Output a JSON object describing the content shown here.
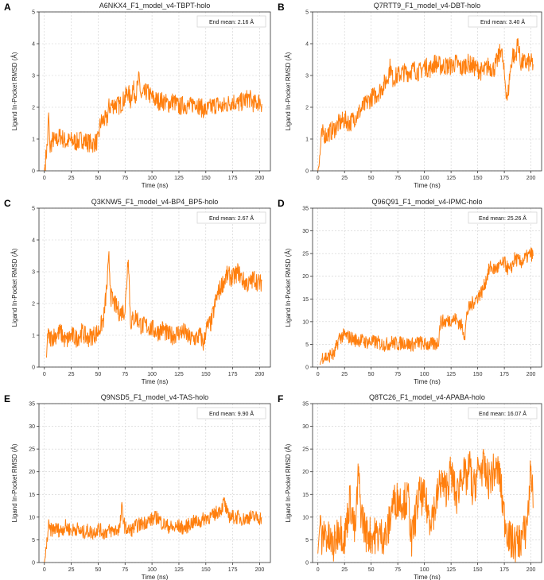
{
  "chart_data": [
    {
      "type": "line",
      "letter": "A",
      "title": "A6NKX4_F1_model_v4-TBPT-holo",
      "xlabel": "Time (ns)",
      "ylabel": "Ligand In-Pocket RMSD (Å)",
      "xlim": [
        -5,
        210
      ],
      "ylim": [
        0,
        5
      ],
      "xticks": [
        0,
        25,
        50,
        75,
        100,
        125,
        150,
        175,
        200
      ],
      "yticks": [
        0,
        1,
        2,
        3,
        4,
        5
      ],
      "annotation": "End mean: 2.16 Å",
      "grid": true,
      "color": "#ff7f0e",
      "series": [
        {
          "x": [
            0,
            1,
            2,
            3,
            4,
            5,
            8,
            10,
            15,
            20,
            25,
            30,
            35,
            40,
            45,
            50,
            52,
            55,
            58,
            60,
            65,
            70,
            75,
            78,
            80,
            82,
            85,
            88,
            90,
            95,
            100,
            105,
            110,
            115,
            120,
            125,
            130,
            135,
            140,
            145,
            150,
            155,
            160,
            165,
            170,
            175,
            180,
            185,
            190,
            195,
            200,
            202
          ],
          "y": [
            0.0,
            0.3,
            0.6,
            0.9,
            1.8,
            0.7,
            1.0,
            0.9,
            1.1,
            0.9,
            0.95,
            0.9,
            1.0,
            0.9,
            0.85,
            0.95,
            1.5,
            1.6,
            1.6,
            2.0,
            2.1,
            2.05,
            2.3,
            2.5,
            2.2,
            2.6,
            2.4,
            2.9,
            2.3,
            2.5,
            2.3,
            2.2,
            2.2,
            2.1,
            2.2,
            2.0,
            2.1,
            2.0,
            2.2,
            2.0,
            1.9,
            2.0,
            2.1,
            2.0,
            2.1,
            2.2,
            2.1,
            2.2,
            2.3,
            2.1,
            2.2,
            2.1
          ]
        }
      ]
    },
    {
      "type": "line",
      "letter": "B",
      "title": "Q7RTT9_F1_model_v4-DBT-holo",
      "xlabel": "Time (ns)",
      "ylabel": "Ligand In-Pocket RMSD (Å)",
      "xlim": [
        -5,
        210
      ],
      "ylim": [
        0,
        5
      ],
      "xticks": [
        0,
        25,
        50,
        75,
        100,
        125,
        150,
        175,
        200
      ],
      "yticks": [
        0,
        1,
        2,
        3,
        4,
        5
      ],
      "annotation": "End mean: 3.40 Å",
      "grid": true,
      "color": "#ff7f0e",
      "series": [
        {
          "x": [
            0,
            1,
            2,
            3,
            5,
            8,
            10,
            15,
            20,
            25,
            30,
            35,
            40,
            45,
            50,
            55,
            60,
            65,
            68,
            70,
            75,
            80,
            85,
            90,
            95,
            100,
            105,
            110,
            115,
            120,
            125,
            130,
            135,
            140,
            145,
            150,
            155,
            160,
            165,
            170,
            172,
            175,
            178,
            180,
            183,
            185,
            188,
            190,
            195,
            200,
            202
          ],
          "y": [
            0.0,
            0.2,
            0.5,
            1.0,
            1.2,
            1.1,
            1.2,
            1.3,
            1.5,
            1.6,
            1.5,
            1.7,
            1.9,
            2.1,
            2.3,
            2.4,
            2.6,
            2.9,
            3.3,
            2.9,
            3.0,
            3.1,
            3.1,
            3.2,
            3.1,
            3.3,
            3.2,
            3.4,
            3.3,
            3.3,
            3.3,
            3.4,
            3.2,
            3.4,
            3.3,
            3.2,
            3.1,
            3.3,
            3.2,
            3.6,
            3.9,
            3.0,
            2.2,
            3.0,
            3.7,
            3.5,
            4.1,
            3.4,
            3.4,
            3.4,
            3.35
          ]
        }
      ]
    },
    {
      "type": "line",
      "letter": "C",
      "title": "Q3KNW5_F1_model_v4-BP4_BP5-holo",
      "xlabel": "Time (ns)",
      "ylabel": "Ligand In-Pocket RMSD (Å)",
      "xlim": [
        -5,
        210
      ],
      "ylim": [
        0,
        5
      ],
      "xticks": [
        0,
        25,
        50,
        75,
        100,
        125,
        150,
        175,
        200
      ],
      "yticks": [
        0,
        1,
        2,
        3,
        4,
        5
      ],
      "annotation": "End mean: 2.67 Å",
      "grid": true,
      "color": "#ff7f0e",
      "series": [
        {
          "x": [
            2,
            3,
            5,
            10,
            15,
            20,
            25,
            30,
            35,
            40,
            45,
            50,
            55,
            58,
            60,
            62,
            65,
            70,
            75,
            78,
            80,
            85,
            90,
            95,
            100,
            105,
            110,
            115,
            120,
            125,
            130,
            135,
            140,
            145,
            148,
            150,
            155,
            160,
            165,
            170,
            175,
            180,
            185,
            190,
            195,
            200,
            202
          ],
          "y": [
            0.3,
            1.0,
            0.9,
            1.0,
            1.1,
            0.8,
            1.0,
            0.9,
            1.1,
            0.9,
            1.0,
            1.1,
            1.5,
            2.5,
            3.4,
            2.2,
            2.0,
            1.7,
            1.8,
            3.6,
            1.4,
            1.6,
            1.3,
            1.3,
            1.2,
            1.1,
            1.2,
            1.0,
            1.0,
            1.1,
            1.1,
            0.9,
            0.9,
            1.0,
            0.7,
            1.2,
            1.4,
            2.2,
            2.6,
            2.9,
            2.8,
            3.0,
            2.7,
            2.6,
            2.8,
            2.6,
            2.7
          ]
        }
      ]
    },
    {
      "type": "line",
      "letter": "D",
      "title": "Q96Q91_F1_model_v4-IPMC-holo",
      "xlabel": "Time (ns)",
      "ylabel": "Ligand In-Pocket RMSD (Å)",
      "xlim": [
        -5,
        210
      ],
      "ylim": [
        0,
        35
      ],
      "xticks": [
        0,
        25,
        50,
        75,
        100,
        125,
        150,
        175,
        200
      ],
      "yticks": [
        0,
        5,
        10,
        15,
        20,
        25,
        30,
        35
      ],
      "annotation": "End mean: 25.26 Å",
      "grid": true,
      "color": "#ff7f0e",
      "series": [
        {
          "x": [
            2,
            3,
            5,
            10,
            12,
            15,
            20,
            25,
            30,
            35,
            40,
            45,
            50,
            55,
            60,
            65,
            70,
            75,
            80,
            85,
            90,
            95,
            100,
            105,
            110,
            113,
            115,
            120,
            125,
            130,
            135,
            138,
            140,
            142,
            145,
            150,
            155,
            160,
            162,
            165,
            170,
            175,
            180,
            185,
            190,
            195,
            200,
            202
          ],
          "y": [
            0.5,
            1.5,
            2.5,
            2.0,
            3.0,
            2.5,
            6.5,
            7.0,
            6.5,
            6.0,
            6.0,
            5.5,
            5.5,
            5.5,
            5.0,
            5.0,
            5.5,
            5.0,
            5.5,
            5.0,
            5.0,
            5.5,
            5.0,
            5.0,
            5.0,
            5.5,
            10.0,
            10.0,
            10.5,
            10.5,
            9.0,
            7.0,
            12.0,
            13.0,
            14.0,
            15.5,
            17.0,
            21.0,
            22.0,
            21.5,
            22.0,
            23.0,
            21.0,
            24.0,
            23.0,
            24.0,
            25.0,
            24.5
          ]
        }
      ]
    },
    {
      "type": "line",
      "letter": "E",
      "title": "Q9NSD5_F1_model_v4-TAS-holo",
      "xlabel": "Time (ns)",
      "ylabel": "Ligand In-Pocket RMSD (Å)",
      "xlim": [
        -5,
        210
      ],
      "ylim": [
        0,
        35
      ],
      "xticks": [
        0,
        25,
        50,
        75,
        100,
        125,
        150,
        175,
        200
      ],
      "yticks": [
        0,
        5,
        10,
        15,
        20,
        25,
        30,
        35
      ],
      "annotation": "End mean: 9.90 Å",
      "grid": true,
      "color": "#ff7f0e",
      "series": [
        {
          "x": [
            0,
            1,
            2,
            3,
            4,
            5,
            10,
            15,
            20,
            25,
            30,
            35,
            40,
            45,
            50,
            55,
            60,
            65,
            70,
            72,
            75,
            80,
            85,
            90,
            95,
            100,
            105,
            110,
            115,
            120,
            125,
            130,
            135,
            140,
            145,
            150,
            155,
            160,
            165,
            167,
            170,
            175,
            180,
            185,
            190,
            195,
            200,
            202
          ],
          "y": [
            0.0,
            1.5,
            3.5,
            6.0,
            8.0,
            7.0,
            7.5,
            7.0,
            8.0,
            7.0,
            7.5,
            6.5,
            7.0,
            6.5,
            7.5,
            6.5,
            7.0,
            7.0,
            7.5,
            12.0,
            7.5,
            7.0,
            8.0,
            8.5,
            9.0,
            9.5,
            10.0,
            8.5,
            8.0,
            7.5,
            8.0,
            7.5,
            8.5,
            9.0,
            9.0,
            10.0,
            10.0,
            11.0,
            12.0,
            13.5,
            10.5,
            10.0,
            10.0,
            9.5,
            10.0,
            10.0,
            9.8,
            9.9
          ]
        }
      ]
    },
    {
      "type": "line",
      "letter": "F",
      "title": "Q8TC26_F1_model_v4-APABA-holo",
      "xlabel": "Time (ns)",
      "ylabel": "Ligand In-Pocket RMSD (Å)",
      "xlim": [
        -5,
        210
      ],
      "ylim": [
        0,
        35
      ],
      "xticks": [
        0,
        25,
        50,
        75,
        100,
        125,
        150,
        175,
        200
      ],
      "yticks": [
        0,
        5,
        10,
        15,
        20,
        25,
        30,
        35
      ],
      "annotation": "End mean: 16.07 Å",
      "grid": true,
      "color": "#ff7f0e",
      "series": [
        {
          "x": [
            0,
            2,
            4,
            6,
            10,
            15,
            20,
            25,
            30,
            35,
            38,
            40,
            45,
            50,
            55,
            60,
            65,
            70,
            75,
            80,
            85,
            88,
            90,
            95,
            100,
            105,
            110,
            115,
            120,
            125,
            130,
            135,
            140,
            143,
            145,
            150,
            155,
            160,
            165,
            170,
            175,
            180,
            185,
            190,
            195,
            198,
            200,
            202
          ],
          "y": [
            2.0,
            9.0,
            4.0,
            7.0,
            5.0,
            3.5,
            8.0,
            5.0,
            14.0,
            6.0,
            20.0,
            12.0,
            6.5,
            6.0,
            6.0,
            6.0,
            6.0,
            13.0,
            14.0,
            13.5,
            14.0,
            4.0,
            8.0,
            15.0,
            14.0,
            10.0,
            12.0,
            18.0,
            16.0,
            20.0,
            14.0,
            20.0,
            18.0,
            22.0,
            15.0,
            20.0,
            21.0,
            18.0,
            20.0,
            20.0,
            10.0,
            5.0,
            4.0,
            5.0,
            7.0,
            13.0,
            22.0,
            12.0
          ]
        }
      ]
    }
  ]
}
